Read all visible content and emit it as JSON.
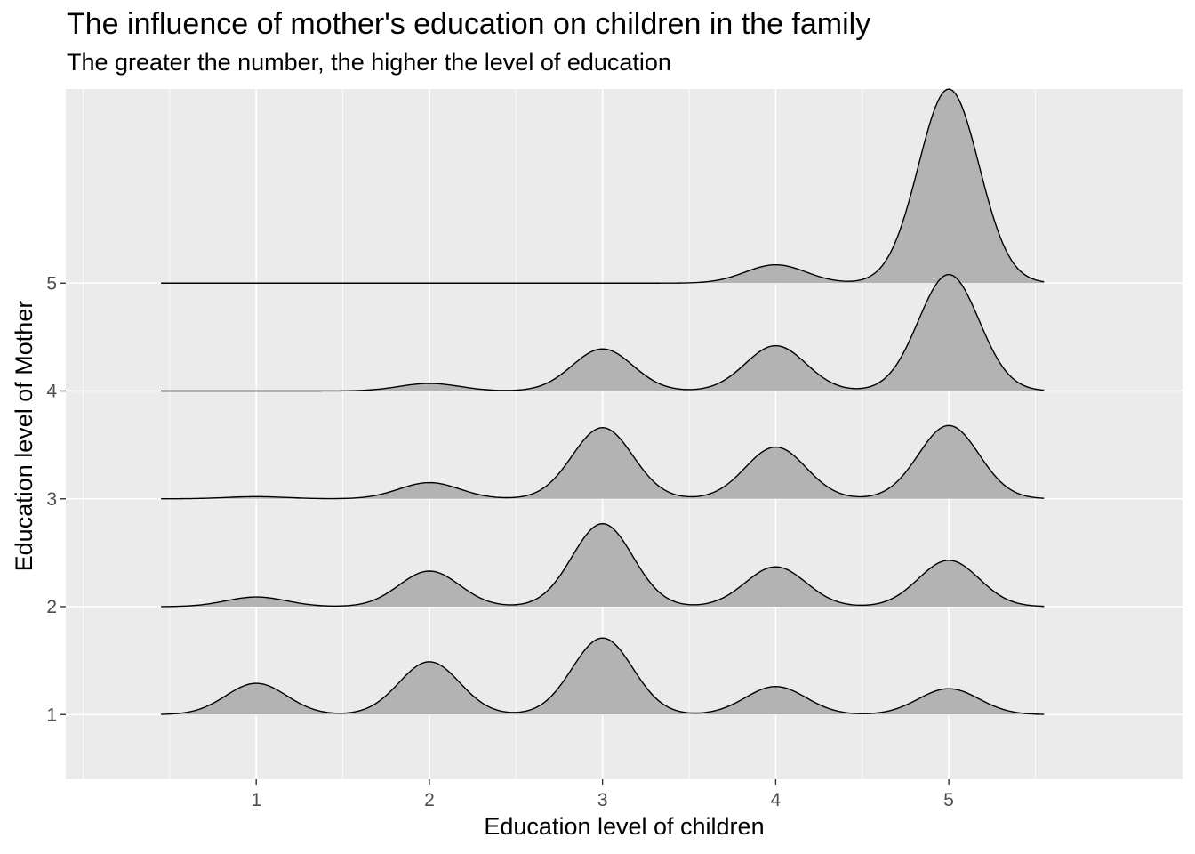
{
  "chart_data": {
    "type": "ridgeline",
    "title": "The influence of mother's education on children in the family",
    "subtitle": "The greater the number, the higher the level of education",
    "xlabel": "Education level of children",
    "ylabel": "Education level of Mother",
    "x_ticks": [
      "1",
      "2",
      "3",
      "4",
      "5"
    ],
    "y_ticks": [
      "1",
      "2",
      "3",
      "4",
      "5"
    ],
    "xlim": [
      -0.1,
      6.35
    ],
    "ylim": [
      0.4,
      6.8
    ],
    "density_range": [
      0.45,
      5.55
    ],
    "grid": true,
    "legend": "none",
    "colors": {
      "panel": "#ebebeb",
      "grid": "#ffffff",
      "fill": "#b3b3b3",
      "line": "#000000",
      "text": "#4d4d4d"
    },
    "series": [
      {
        "mother_level": 1,
        "peaks": [
          {
            "x": 1,
            "height": 0.29
          },
          {
            "x": 2,
            "height": 0.49
          },
          {
            "x": 3,
            "height": 0.71
          },
          {
            "x": 4,
            "height": 0.26
          },
          {
            "x": 5,
            "height": 0.24
          }
        ],
        "baseline_gap": 0.01
      },
      {
        "mother_level": 2,
        "peaks": [
          {
            "x": 1,
            "height": 0.09
          },
          {
            "x": 2,
            "height": 0.33
          },
          {
            "x": 3,
            "height": 0.77
          },
          {
            "x": 4,
            "height": 0.37
          },
          {
            "x": 5,
            "height": 0.43
          }
        ],
        "baseline_gap": 0.02
      },
      {
        "mother_level": 3,
        "peaks": [
          {
            "x": 1,
            "height": 0.02
          },
          {
            "x": 2,
            "height": 0.15
          },
          {
            "x": 3,
            "height": 0.66
          },
          {
            "x": 4,
            "height": 0.48
          },
          {
            "x": 5,
            "height": 0.68
          }
        ],
        "baseline_gap": 0.02
      },
      {
        "mother_level": 4,
        "peaks": [
          {
            "x": 1,
            "height": 0.0
          },
          {
            "x": 2,
            "height": 0.07
          },
          {
            "x": 3,
            "height": 0.39
          },
          {
            "x": 4,
            "height": 0.42
          },
          {
            "x": 5,
            "height": 1.08
          }
        ],
        "baseline_gap": 0.02
      },
      {
        "mother_level": 5,
        "peaks": [
          {
            "x": 1,
            "height": 0.0
          },
          {
            "x": 2,
            "height": 0.0
          },
          {
            "x": 3,
            "height": 0.0
          },
          {
            "x": 4,
            "height": 0.17
          },
          {
            "x": 5,
            "height": 1.8
          }
        ],
        "baseline_gap": 0.02
      }
    ]
  }
}
